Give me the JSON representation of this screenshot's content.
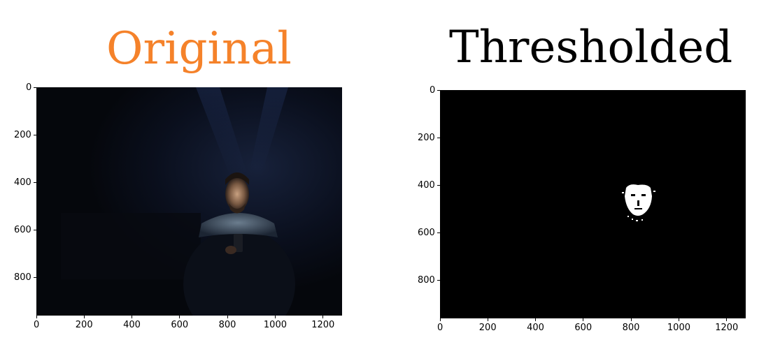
{
  "titles": {
    "left": "Original",
    "right": "Thresholded",
    "left_color": "#f5822a",
    "right_color": "#000000"
  },
  "plots": {
    "left": {
      "xlim": [
        0,
        1280
      ],
      "ylim": [
        0,
        960
      ],
      "x_ticks": [
        "0",
        "200",
        "400",
        "600",
        "800",
        "1000",
        "1200"
      ],
      "y_ticks": [
        "0",
        "200",
        "400",
        "600",
        "800"
      ]
    },
    "right": {
      "xlim": [
        0,
        1280
      ],
      "ylim": [
        0,
        960
      ],
      "x_ticks": [
        "0",
        "200",
        "400",
        "600",
        "800",
        "1000",
        "1200"
      ],
      "y_ticks": [
        "0",
        "200",
        "400",
        "600",
        "800"
      ]
    }
  },
  "images": {
    "original": "dark photo of a man illuminated by a phone screen",
    "thresholded": "black image with a white face mask region"
  }
}
